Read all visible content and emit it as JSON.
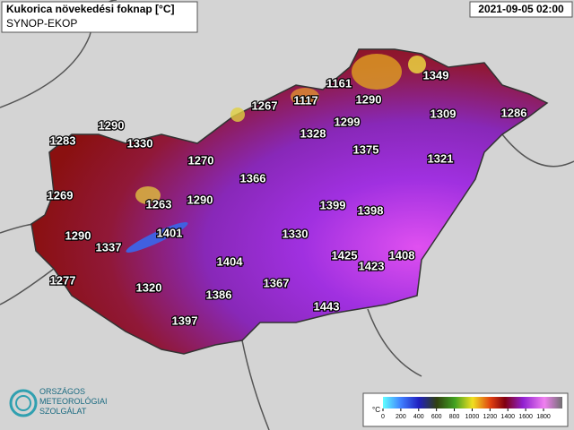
{
  "header": {
    "title": "Kukorica növekedési foknap [°C]",
    "source": "SYNOP-EKOP",
    "datetime": "2021-09-05 02:00"
  },
  "stations": [
    "1349",
    "1161",
    "1290",
    "1267",
    "1117",
    "1299",
    "1309",
    "1286",
    "1290",
    "1328",
    "1375",
    "1283",
    "1330",
    "1321",
    "1270",
    "1366",
    "1269",
    "1263",
    "1290",
    "1399",
    "1398",
    "1290",
    "1401",
    "1330",
    "1337",
    "1425",
    "1408",
    "1423",
    "1404",
    "1277",
    "1367",
    "1320",
    "1386",
    "1443",
    "1397"
  ],
  "legend": {
    "unit": "°C",
    "ticks": [
      0,
      200,
      400,
      600,
      800,
      1000,
      1200,
      1400,
      1600,
      1800
    ]
  },
  "logo": {
    "lines": [
      "ORSZÁGOS",
      "METEOROLÓGIAI",
      "SZOLGÁLAT"
    ]
  }
}
